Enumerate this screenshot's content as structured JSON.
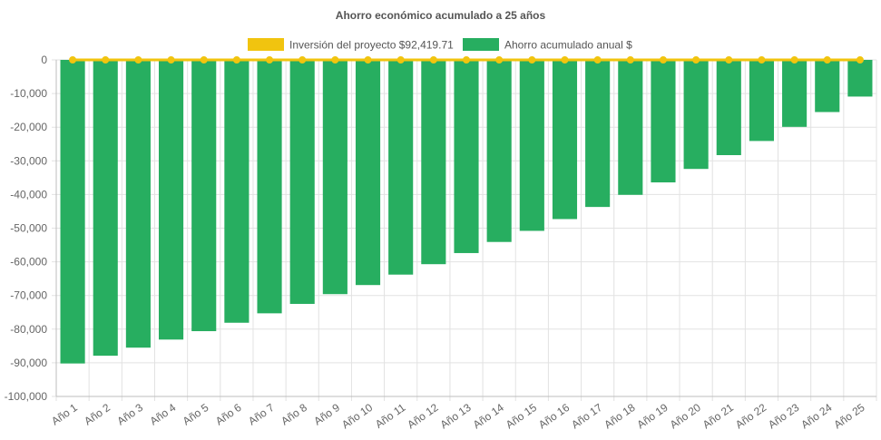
{
  "chart_data": {
    "type": "bar",
    "title": "Ahorro económico acumulado a 25 años",
    "xlabel": "",
    "ylabel": "",
    "ylim": [
      -100000,
      0
    ],
    "yticks": [
      0,
      -10000,
      -20000,
      -30000,
      -40000,
      -50000,
      -60000,
      -70000,
      -80000,
      -90000,
      -100000
    ],
    "ytick_labels": [
      "0",
      "-10,000",
      "-20,000",
      "-30,000",
      "-40,000",
      "-50,000",
      "-60,000",
      "-70,000",
      "-80,000",
      "-90,000",
      "-100,000"
    ],
    "grid": true,
    "legend_position": "top",
    "categories": [
      "Año 1",
      "Año 2",
      "Año 3",
      "Año 4",
      "Año 5",
      "Año 6",
      "Año 7",
      "Año 8",
      "Año 9",
      "Año 10",
      "Año 11",
      "Año 12",
      "Año 13",
      "Año 14",
      "Año 15",
      "Año 16",
      "Año 17",
      "Año 18",
      "Año 19",
      "Año 20",
      "Año 21",
      "Año 22",
      "Año 23",
      "Año 24",
      "Año 25"
    ],
    "series": [
      {
        "name": "Inversión del proyecto $92,419.71",
        "type": "line",
        "color": "#f1c40f",
        "values": [
          0,
          0,
          0,
          0,
          0,
          0,
          0,
          0,
          0,
          0,
          0,
          0,
          0,
          0,
          0,
          0,
          0,
          0,
          0,
          0,
          0,
          0,
          0,
          0,
          0
        ]
      },
      {
        "name": "Ahorro acumulado anual $",
        "type": "bar",
        "color": "#27ae60",
        "values": [
          -90200,
          -87900,
          -85500,
          -83100,
          -80600,
          -78100,
          -75300,
          -72500,
          -69600,
          -66900,
          -63800,
          -60700,
          -57400,
          -54100,
          -50800,
          -47300,
          -43700,
          -40100,
          -36400,
          -32400,
          -28300,
          -24100,
          -19900,
          -15500,
          -10900
        ]
      }
    ]
  }
}
